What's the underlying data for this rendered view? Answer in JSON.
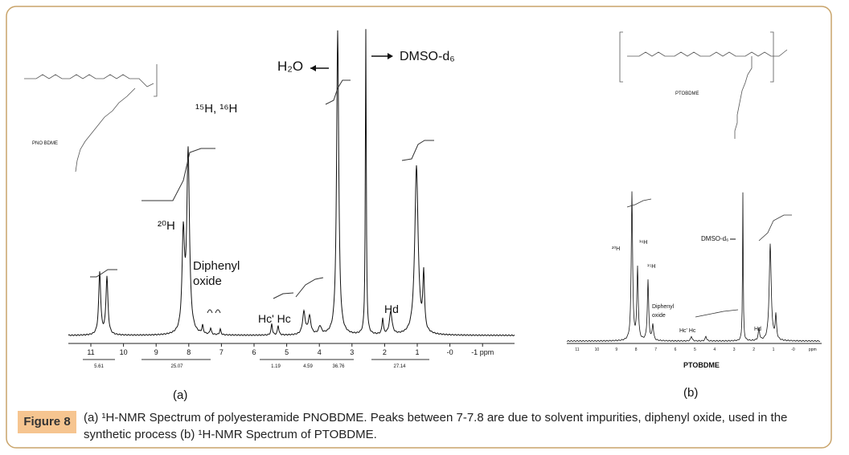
{
  "figure": {
    "panels": [
      {
        "label": "(a)",
        "structure_label": "PNO BDME",
        "peak_labels": [
          "H₂O",
          "DMSO-d₆",
          "¹⁵H, ¹⁶H",
          "²⁰H",
          "Diphenyl",
          "oxide",
          "Hc' Hc",
          "Hd"
        ],
        "axis_ticks": [
          "11",
          "10",
          "9",
          "8",
          "7",
          "6",
          "5",
          "4",
          "3",
          "2",
          "1",
          "-0",
          "-1 ppm"
        ],
        "integrals": [
          "5.61",
          "25.07",
          "1.19",
          "4.59",
          "36.76",
          "27.14"
        ]
      },
      {
        "label": "(b)",
        "structure_label": "PTOBDME",
        "axis_title": "PTOBDME",
        "peak_labels": [
          "DMSO-d₆",
          "²⁰H",
          "¹⁶H",
          "¹⁵H",
          "Diphenyl",
          "oxide",
          "Hc' Hc",
          "Hd"
        ],
        "axis_ticks": [
          "11",
          "10",
          "9",
          "8",
          "7",
          "6",
          "5",
          "4",
          "3",
          "2",
          "1",
          "-0",
          "ppm"
        ]
      }
    ],
    "caption": {
      "label": "Figure 8",
      "text": "(a) ¹H-NMR Spectrum of polyesteramide PNOBDME. Peaks between 7-7.8 are due to solvent impurities, diphenyl oxide, used in the synthetic process (b) ¹H-NMR Spectrum of PTOBDME."
    }
  }
}
